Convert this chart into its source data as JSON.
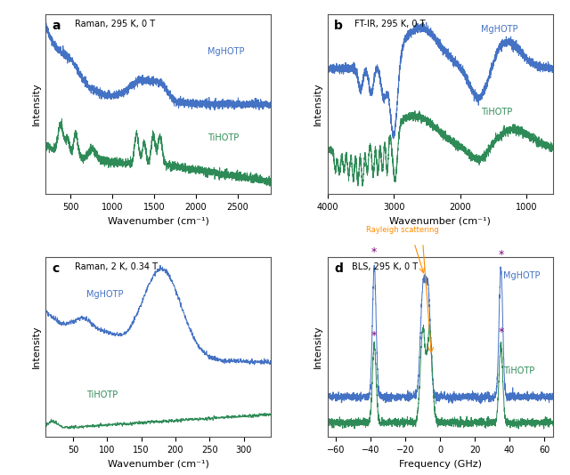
{
  "panel_a": {
    "label": "a",
    "title": "Raman, 295 K, 0 T",
    "xlabel": "Wavenumber (cm⁻¹)",
    "ylabel": "Intensity",
    "xlim": [
      200,
      2900
    ],
    "xticks": [
      500,
      1000,
      1500,
      2000,
      2500
    ],
    "blue_label": "MgHOTP",
    "green_label": "TiHOTP",
    "blue_color": "#4472C4",
    "green_color": "#2E8B57"
  },
  "panel_b": {
    "label": "b",
    "title": "FT-IR, 295 K, 0 T",
    "xlabel": "Wavenumber (cm⁻¹)",
    "ylabel": "Intensity",
    "xlim": [
      4000,
      600
    ],
    "xticks": [
      4000,
      3000,
      2000,
      1000
    ],
    "blue_label": "MgHOTP",
    "green_label": "TiHOTP",
    "blue_color": "#4472C4",
    "green_color": "#2E8B57"
  },
  "panel_c": {
    "label": "c",
    "title": "Raman, 2 K, 0.34 T",
    "xlabel": "Wavenumber (cm⁻¹)",
    "ylabel": "Intensity",
    "xlim": [
      10,
      340
    ],
    "xticks": [
      50,
      100,
      150,
      200,
      250,
      300
    ],
    "blue_label": "MgHOTP",
    "green_label": "TiHOTP",
    "blue_color": "#4472C4",
    "green_color": "#2E8B57"
  },
  "panel_d": {
    "label": "d",
    "title": "BLS, 295 K, 0 T",
    "xlabel": "Frequency (GHz)",
    "ylabel": "Intensity",
    "xlim": [
      -65,
      65
    ],
    "xticks": [
      -60,
      -40,
      -20,
      0,
      20,
      40,
      60
    ],
    "blue_label": "MgHOTP",
    "green_label": "TiHOTP",
    "blue_color": "#4472C4",
    "green_color": "#2E8B57",
    "annotation": "Rayleigh scattering"
  },
  "background_color": "#ffffff"
}
